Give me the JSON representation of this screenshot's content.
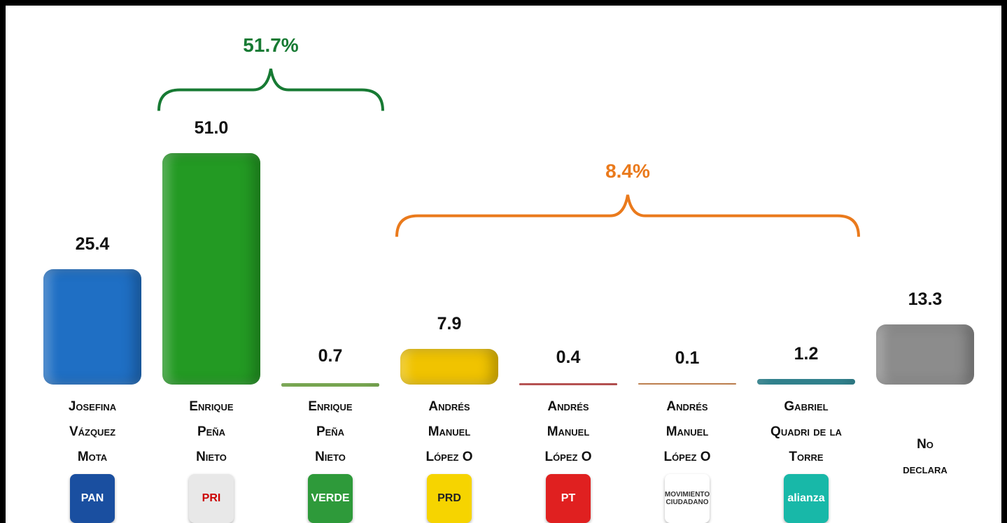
{
  "chart_data": {
    "type": "bar",
    "categories": [
      "Josefina\nVázquez\nMota",
      "Enrique\nPeña\nNieto",
      "Enrique\nPeña\nNieto",
      "Andrés\nManuel\nLópez O",
      "Andrés\nManuel\nLópez O",
      "Andrés\nManuel\nLópez O",
      "Gabriel\nQuadri de la\nTorre",
      "No\ndeclara"
    ],
    "values": [
      25.4,
      51.0,
      0.7,
      7.9,
      0.4,
      0.1,
      1.2,
      13.3
    ],
    "value_labels": [
      "25.4",
      "51.0",
      "0.7",
      "7.9",
      "0.4",
      "0.1",
      "1.2",
      "13.3"
    ],
    "colors": [
      "#1f6fc4",
      "#239a23",
      "#7cc242",
      "#f0c300",
      "#e04040",
      "#f08a3a",
      "#1a8a9a",
      "#8c8c8c"
    ],
    "logos": [
      "PAN",
      "PRI",
      "VERDE",
      "PRD",
      "PT",
      "MOVIMIENTO CIUDADANO",
      "alianza",
      null
    ],
    "logo_colors": [
      "#1a4fa0",
      "#e8e8e8",
      "#2e9a3a",
      "#f6d400",
      "#e02020",
      "#ffffff",
      "#18b8a8",
      null
    ],
    "ylim": [
      0,
      60
    ],
    "annotations": [
      {
        "text": "51.7%",
        "color": "#177a33",
        "from": 1,
        "to": 2
      },
      {
        "text": "8.4%",
        "color": "#ea7a1c",
        "from": 3,
        "to": 6
      }
    ]
  }
}
